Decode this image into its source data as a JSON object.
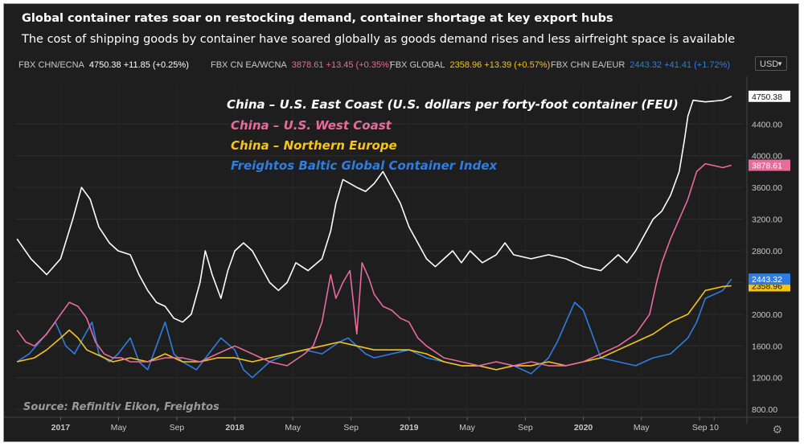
{
  "header": {
    "title": "Global container rates soar on restocking demand, container shortage at key export hubs",
    "subtitle": "The cost of shipping goods by container have soared globally as goods demand rises and less airfreight space is available"
  },
  "tickers": [
    {
      "name": "FBX CHN/ECNA",
      "value": "4750.38 +11.85 (+0.25%)",
      "color": "#ffffff"
    },
    {
      "name": "FBX CN EA/WCNA",
      "value": "3878.61 +13.45 (+0.35%)",
      "color": "#e86b9b"
    },
    {
      "name": "FBX GLOBAL",
      "value": "2358.96 +13.39 (+0.57%)",
      "color": "#f5c518"
    },
    {
      "name": "FBX CHN EA/EUR",
      "value": "2443.32 +41.41 (+1.72%)",
      "color": "#2f7de1"
    }
  ],
  "currency": "USD",
  "source": "Source: Refinitiv Eikon, Freightos",
  "chart_data": {
    "type": "line",
    "title": "Global container rates soar on restocking demand, container shortage at key export hubs",
    "xlabel": "",
    "ylabel": "",
    "ylim": [
      700,
      4900
    ],
    "x_ticks": [
      {
        "label": "2017",
        "t": 0.0,
        "bold": true
      },
      {
        "label": "May",
        "t": 0.333,
        "bold": false
      },
      {
        "label": "Sep",
        "t": 0.667,
        "bold": false
      },
      {
        "label": "2018",
        "t": 1.0,
        "bold": true
      },
      {
        "label": "May",
        "t": 1.333,
        "bold": false
      },
      {
        "label": "Sep",
        "t": 1.667,
        "bold": false
      },
      {
        "label": "2019",
        "t": 2.0,
        "bold": true
      },
      {
        "label": "May",
        "t": 2.333,
        "bold": false
      },
      {
        "label": "Sep",
        "t": 2.667,
        "bold": false
      },
      {
        "label": "2020",
        "t": 3.0,
        "bold": true
      },
      {
        "label": "May",
        "t": 3.333,
        "bold": false
      },
      {
        "label": "Sep",
        "t": 3.667,
        "bold": false
      },
      {
        "label": "10",
        "t": 3.75,
        "bold": false
      }
    ],
    "y_ticks": [
      800,
      1200,
      1600,
      2000,
      2400,
      2800,
      3200,
      3600,
      4000,
      4400
    ],
    "y_tick_labels": [
      "800.00",
      "1200.00",
      "1600.00",
      "2000.00",
      "2400.00",
      "2800.00",
      "3200.00",
      "3600.00",
      "4000.00",
      "4400.00"
    ],
    "series": [
      {
        "name": "China – U.S. East Coast (U.S. dollars per forty-foot container (FEU)",
        "color": "#ffffff",
        "last": "4750.38",
        "points": [
          [
            -0.25,
            2950
          ],
          [
            -0.17,
            2700
          ],
          [
            -0.08,
            2500
          ],
          [
            0.0,
            2700
          ],
          [
            0.07,
            3200
          ],
          [
            0.12,
            3600
          ],
          [
            0.17,
            3450
          ],
          [
            0.22,
            3100
          ],
          [
            0.28,
            2900
          ],
          [
            0.33,
            2800
          ],
          [
            0.4,
            2750
          ],
          [
            0.45,
            2500
          ],
          [
            0.5,
            2300
          ],
          [
            0.55,
            2150
          ],
          [
            0.6,
            2100
          ],
          [
            0.65,
            1950
          ],
          [
            0.7,
            1900
          ],
          [
            0.75,
            2000
          ],
          [
            0.8,
            2400
          ],
          [
            0.83,
            2800
          ],
          [
            0.87,
            2500
          ],
          [
            0.92,
            2200
          ],
          [
            0.96,
            2550
          ],
          [
            1.0,
            2800
          ],
          [
            1.05,
            2900
          ],
          [
            1.1,
            2800
          ],
          [
            1.15,
            2600
          ],
          [
            1.2,
            2400
          ],
          [
            1.25,
            2300
          ],
          [
            1.3,
            2400
          ],
          [
            1.35,
            2650
          ],
          [
            1.42,
            2550
          ],
          [
            1.5,
            2700
          ],
          [
            1.55,
            3050
          ],
          [
            1.58,
            3400
          ],
          [
            1.62,
            3700
          ],
          [
            1.7,
            3600
          ],
          [
            1.75,
            3550
          ],
          [
            1.8,
            3650
          ],
          [
            1.85,
            3800
          ],
          [
            1.9,
            3600
          ],
          [
            1.95,
            3400
          ],
          [
            2.0,
            3100
          ],
          [
            2.05,
            2900
          ],
          [
            2.1,
            2700
          ],
          [
            2.15,
            2600
          ],
          [
            2.2,
            2700
          ],
          [
            2.25,
            2800
          ],
          [
            2.3,
            2650
          ],
          [
            2.35,
            2800
          ],
          [
            2.42,
            2650
          ],
          [
            2.5,
            2750
          ],
          [
            2.55,
            2900
          ],
          [
            2.6,
            2750
          ],
          [
            2.7,
            2700
          ],
          [
            2.8,
            2750
          ],
          [
            2.9,
            2700
          ],
          [
            3.0,
            2600
          ],
          [
            3.1,
            2550
          ],
          [
            3.15,
            2650
          ],
          [
            3.2,
            2750
          ],
          [
            3.25,
            2650
          ],
          [
            3.3,
            2800
          ],
          [
            3.35,
            3000
          ],
          [
            3.4,
            3200
          ],
          [
            3.45,
            3300
          ],
          [
            3.5,
            3500
          ],
          [
            3.55,
            3800
          ],
          [
            3.58,
            4200
          ],
          [
            3.6,
            4500
          ],
          [
            3.63,
            4700
          ],
          [
            3.7,
            4680
          ],
          [
            3.8,
            4700
          ],
          [
            3.85,
            4750
          ]
        ]
      },
      {
        "name": "China – U.S. West Coast",
        "color": "#e86b9b",
        "last": "3878.61",
        "points": [
          [
            -0.25,
            1800
          ],
          [
            -0.2,
            1650
          ],
          [
            -0.15,
            1600
          ],
          [
            -0.08,
            1750
          ],
          [
            0.0,
            2000
          ],
          [
            0.05,
            2150
          ],
          [
            0.1,
            2100
          ],
          [
            0.15,
            1950
          ],
          [
            0.2,
            1650
          ],
          [
            0.25,
            1500
          ],
          [
            0.3,
            1450
          ],
          [
            0.35,
            1450
          ],
          [
            0.4,
            1400
          ],
          [
            0.5,
            1400
          ],
          [
            0.6,
            1450
          ],
          [
            0.7,
            1450
          ],
          [
            0.8,
            1400
          ],
          [
            0.9,
            1500
          ],
          [
            1.0,
            1600
          ],
          [
            1.1,
            1500
          ],
          [
            1.2,
            1400
          ],
          [
            1.3,
            1350
          ],
          [
            1.4,
            1500
          ],
          [
            1.45,
            1600
          ],
          [
            1.5,
            1900
          ],
          [
            1.55,
            2500
          ],
          [
            1.58,
            2200
          ],
          [
            1.62,
            2400
          ],
          [
            1.66,
            2550
          ],
          [
            1.7,
            1750
          ],
          [
            1.73,
            2650
          ],
          [
            1.77,
            2450
          ],
          [
            1.8,
            2250
          ],
          [
            1.85,
            2100
          ],
          [
            1.9,
            2050
          ],
          [
            1.95,
            1950
          ],
          [
            2.0,
            1900
          ],
          [
            2.05,
            1700
          ],
          [
            2.1,
            1600
          ],
          [
            2.2,
            1450
          ],
          [
            2.3,
            1400
          ],
          [
            2.4,
            1350
          ],
          [
            2.5,
            1400
          ],
          [
            2.6,
            1350
          ],
          [
            2.7,
            1400
          ],
          [
            2.8,
            1350
          ],
          [
            2.9,
            1350
          ],
          [
            3.0,
            1400
          ],
          [
            3.1,
            1500
          ],
          [
            3.2,
            1600
          ],
          [
            3.3,
            1750
          ],
          [
            3.38,
            2000
          ],
          [
            3.42,
            2400
          ],
          [
            3.45,
            2650
          ],
          [
            3.5,
            2950
          ],
          [
            3.55,
            3200
          ],
          [
            3.6,
            3450
          ],
          [
            3.65,
            3800
          ],
          [
            3.7,
            3900
          ],
          [
            3.8,
            3850
          ],
          [
            3.85,
            3880
          ]
        ]
      },
      {
        "name": "China – Northern Europe",
        "color": "#f5c518",
        "last": "2358.96",
        "points": [
          [
            -0.25,
            1400
          ],
          [
            -0.15,
            1450
          ],
          [
            -0.08,
            1550
          ],
          [
            0.0,
            1700
          ],
          [
            0.05,
            1800
          ],
          [
            0.1,
            1700
          ],
          [
            0.15,
            1550
          ],
          [
            0.2,
            1500
          ],
          [
            0.3,
            1400
          ],
          [
            0.4,
            1450
          ],
          [
            0.5,
            1400
          ],
          [
            0.6,
            1500
          ],
          [
            0.7,
            1400
          ],
          [
            0.8,
            1400
          ],
          [
            0.9,
            1450
          ],
          [
            1.0,
            1450
          ],
          [
            1.1,
            1400
          ],
          [
            1.2,
            1450
          ],
          [
            1.3,
            1500
          ],
          [
            1.4,
            1550
          ],
          [
            1.5,
            1600
          ],
          [
            1.6,
            1650
          ],
          [
            1.7,
            1600
          ],
          [
            1.8,
            1550
          ],
          [
            1.9,
            1550
          ],
          [
            2.0,
            1550
          ],
          [
            2.1,
            1500
          ],
          [
            2.2,
            1400
          ],
          [
            2.3,
            1350
          ],
          [
            2.4,
            1350
          ],
          [
            2.5,
            1300
          ],
          [
            2.6,
            1350
          ],
          [
            2.7,
            1350
          ],
          [
            2.8,
            1400
          ],
          [
            2.9,
            1350
          ],
          [
            3.0,
            1400
          ],
          [
            3.1,
            1450
          ],
          [
            3.2,
            1550
          ],
          [
            3.3,
            1650
          ],
          [
            3.4,
            1750
          ],
          [
            3.5,
            1900
          ],
          [
            3.6,
            2000
          ],
          [
            3.65,
            2150
          ],
          [
            3.7,
            2300
          ],
          [
            3.8,
            2350
          ],
          [
            3.85,
            2359
          ]
        ]
      },
      {
        "name": "Freightos Baltic Global Container Index",
        "color": "#2f7de1",
        "last": "2443.32",
        "points": [
          [
            -0.25,
            1400
          ],
          [
            -0.18,
            1500
          ],
          [
            -0.1,
            1700
          ],
          [
            -0.03,
            1900
          ],
          [
            0.03,
            1600
          ],
          [
            0.08,
            1500
          ],
          [
            0.13,
            1700
          ],
          [
            0.18,
            1900
          ],
          [
            0.22,
            1500
          ],
          [
            0.28,
            1400
          ],
          [
            0.33,
            1500
          ],
          [
            0.4,
            1700
          ],
          [
            0.45,
            1400
          ],
          [
            0.5,
            1300
          ],
          [
            0.55,
            1600
          ],
          [
            0.6,
            1900
          ],
          [
            0.65,
            1500
          ],
          [
            0.7,
            1400
          ],
          [
            0.78,
            1300
          ],
          [
            0.85,
            1500
          ],
          [
            0.92,
            1700
          ],
          [
            1.0,
            1550
          ],
          [
            1.05,
            1300
          ],
          [
            1.1,
            1200
          ],
          [
            1.15,
            1300
          ],
          [
            1.2,
            1400
          ],
          [
            1.3,
            1500
          ],
          [
            1.4,
            1550
          ],
          [
            1.5,
            1500
          ],
          [
            1.6,
            1650
          ],
          [
            1.65,
            1700
          ],
          [
            1.7,
            1600
          ],
          [
            1.75,
            1500
          ],
          [
            1.8,
            1450
          ],
          [
            1.9,
            1500
          ],
          [
            2.0,
            1550
          ],
          [
            2.1,
            1450
          ],
          [
            2.2,
            1400
          ],
          [
            2.3,
            1350
          ],
          [
            2.4,
            1350
          ],
          [
            2.5,
            1300
          ],
          [
            2.6,
            1350
          ],
          [
            2.7,
            1250
          ],
          [
            2.8,
            1450
          ],
          [
            2.85,
            1650
          ],
          [
            2.9,
            1900
          ],
          [
            2.95,
            2150
          ],
          [
            3.0,
            2050
          ],
          [
            3.05,
            1750
          ],
          [
            3.1,
            1450
          ],
          [
            3.2,
            1400
          ],
          [
            3.3,
            1350
          ],
          [
            3.4,
            1450
          ],
          [
            3.5,
            1500
          ],
          [
            3.6,
            1700
          ],
          [
            3.65,
            1900
          ],
          [
            3.7,
            2200
          ],
          [
            3.8,
            2300
          ],
          [
            3.85,
            2443
          ]
        ]
      }
    ]
  }
}
